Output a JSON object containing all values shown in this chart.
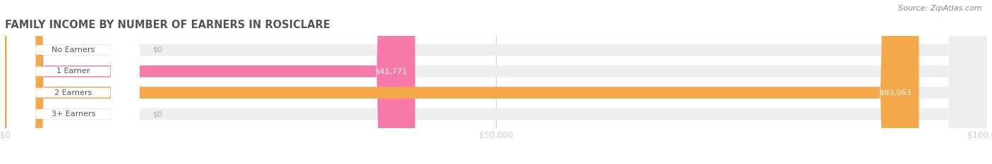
{
  "title": "FAMILY INCOME BY NUMBER OF EARNERS IN ROSICLARE",
  "source": "Source: ZipAtlas.com",
  "categories": [
    "No Earners",
    "1 Earner",
    "2 Earners",
    "3+ Earners"
  ],
  "values": [
    0,
    41771,
    93063,
    0
  ],
  "bar_colors": [
    "#a8a8d8",
    "#f87aaa",
    "#f5a84a",
    "#f5a0a0"
  ],
  "bar_bg_color": "#eeeeee",
  "label_bg_color": "#ffffff",
  "xlim": [
    0,
    100000
  ],
  "xticks": [
    0,
    50000,
    100000
  ],
  "xtick_labels": [
    "$0",
    "$50,000",
    "$100,000"
  ],
  "bar_height": 0.55,
  "value_label_color_inside": "#ffffff",
  "title_color": "#555555",
  "background_color": "#ffffff",
  "figsize": [
    14.06,
    2.33
  ],
  "dpi": 100
}
